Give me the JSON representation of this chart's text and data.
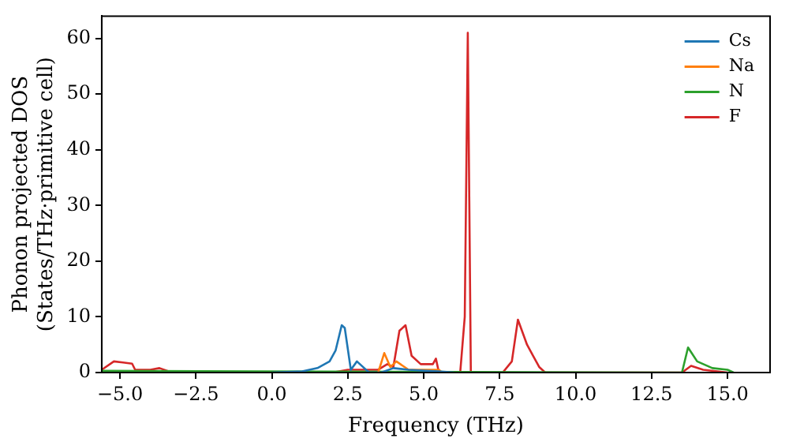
{
  "chart_data": {
    "type": "line",
    "xlabel": "Frequency (THz)",
    "ylabel": "Phonon projected DOS\n(States/THz·primitive cell)",
    "xlim": [
      -5.6,
      16.4
    ],
    "xticks": [
      {
        "value": -5,
        "label": "−5.0"
      },
      {
        "value": -2.5,
        "label": "−2.5"
      },
      {
        "value": 0,
        "label": "0.0"
      },
      {
        "value": 2.5,
        "label": "2.5"
      },
      {
        "value": 5,
        "label": "5.0"
      },
      {
        "value": 7.5,
        "label": "7.5"
      },
      {
        "value": 10,
        "label": "10.0"
      },
      {
        "value": 12.5,
        "label": "12.5"
      },
      {
        "value": 15,
        "label": "15.0"
      }
    ],
    "ylim": [
      0,
      64
    ],
    "yticks": [
      0,
      10,
      20,
      30,
      40,
      50,
      60
    ],
    "grid": false,
    "legend": "top right",
    "marker": "none",
    "line_style": "solid",
    "series": [
      {
        "name": "Cs",
        "color": "#1f77b4",
        "x": [
          0,
          1.0,
          1.5,
          1.9,
          2.1,
          2.3,
          2.4,
          2.6,
          2.8,
          3.2,
          3.6,
          4.0,
          4.5,
          5.5,
          6.0
        ],
        "values": [
          0,
          0.2,
          0.8,
          2,
          4,
          8.5,
          8,
          0.5,
          2,
          0,
          0,
          0.8,
          0.5,
          0.2,
          0
        ]
      },
      {
        "name": "Na",
        "color": "#ff7f0e",
        "x": [
          3.5,
          3.7,
          3.9,
          4.1,
          4.5,
          5.5,
          5.6
        ],
        "values": [
          0,
          3.5,
          1,
          2,
          0.5,
          0.5,
          0
        ]
      },
      {
        "name": "N",
        "color": "#2ca02c",
        "x": [
          -5.6,
          13.5,
          13.7,
          14.0,
          14.5,
          15.0,
          15.2
        ],
        "values": [
          0.3,
          0,
          4.5,
          2,
          0.8,
          0.5,
          0
        ]
      },
      {
        "name": "F",
        "color": "#d62728",
        "x": [
          -5.6,
          -5.2,
          -4.9,
          -4.6,
          -4.5,
          -4.0,
          -3.7,
          -3.4,
          -3.0,
          2.0,
          2.5,
          3.5,
          3.8,
          4.0,
          4.2,
          4.4,
          4.6,
          4.9,
          5.3,
          5.4,
          5.5,
          6.2,
          6.35,
          6.45,
          6.55,
          7.6,
          7.9,
          8.1,
          8.4,
          8.6,
          8.8,
          9.0,
          13.5,
          13.8,
          14.2,
          15.0
        ],
        "values": [
          0.5,
          2,
          1.8,
          1.6,
          0.5,
          0.5,
          0.8,
          0.2,
          0,
          0,
          0.5,
          0.5,
          1.5,
          1,
          7.5,
          8.5,
          3,
          1.5,
          1.5,
          2.5,
          0,
          0,
          10,
          61,
          0,
          0,
          2,
          9.5,
          5,
          3,
          1,
          0,
          0,
          1.2,
          0.5,
          0
        ]
      }
    ]
  }
}
